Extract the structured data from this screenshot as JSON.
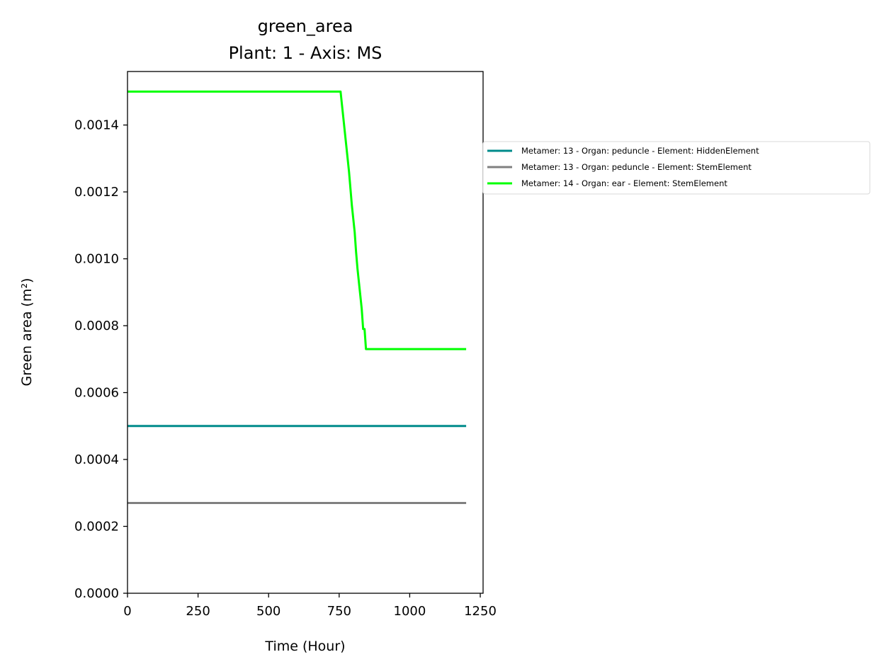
{
  "chart_data": {
    "type": "line",
    "title": "green_area",
    "subtitle": "Plant: 1 - Axis: MS",
    "xlabel": "Time (Hour)",
    "ylabel": "Green area (m²)",
    "xlim": [
      0,
      1260
    ],
    "ylim": [
      0,
      0.00156
    ],
    "xticks": [
      0,
      250,
      500,
      750,
      1000,
      1250
    ],
    "xtick_labels": [
      "0",
      "250",
      "500",
      "750",
      "1000",
      "1250"
    ],
    "yticks": [
      0,
      0.0002,
      0.0004,
      0.0006,
      0.0008,
      0.001,
      0.0012,
      0.0014
    ],
    "ytick_labels": [
      "0.0000",
      "0.0002",
      "0.0004",
      "0.0006",
      "0.0008",
      "0.0010",
      "0.0012",
      "0.0014"
    ],
    "grid": false,
    "legend_position": "outside-right",
    "series": [
      {
        "name": "Metamer: 13 - Organ: peduncle - Element: HiddenElement",
        "color": "#008b8b",
        "x": [
          0,
          1200
        ],
        "y": [
          0.0005,
          0.0005
        ]
      },
      {
        "name": "Metamer: 13 - Organ: peduncle - Element: StemElement",
        "color": "#808080",
        "x": [
          0,
          1200
        ],
        "y": [
          0.00027,
          0.00027
        ]
      },
      {
        "name": "Metamer: 14 - Organ: ear - Element: StemElement",
        "color": "#00ff00",
        "x": [
          0,
          755,
          760,
          765,
          770,
          775,
          780,
          785,
          790,
          795,
          800,
          805,
          810,
          815,
          820,
          825,
          830,
          835,
          840,
          845,
          850,
          1200
        ],
        "y": [
          0.0015,
          0.0015,
          0.00146,
          0.00142,
          0.00138,
          0.00134,
          0.0013,
          0.00126,
          0.00121,
          0.00116,
          0.00112,
          0.00108,
          0.00102,
          0.00097,
          0.00093,
          0.00089,
          0.00085,
          0.00079,
          0.00079,
          0.00073,
          0.00073,
          0.00073
        ]
      }
    ]
  }
}
